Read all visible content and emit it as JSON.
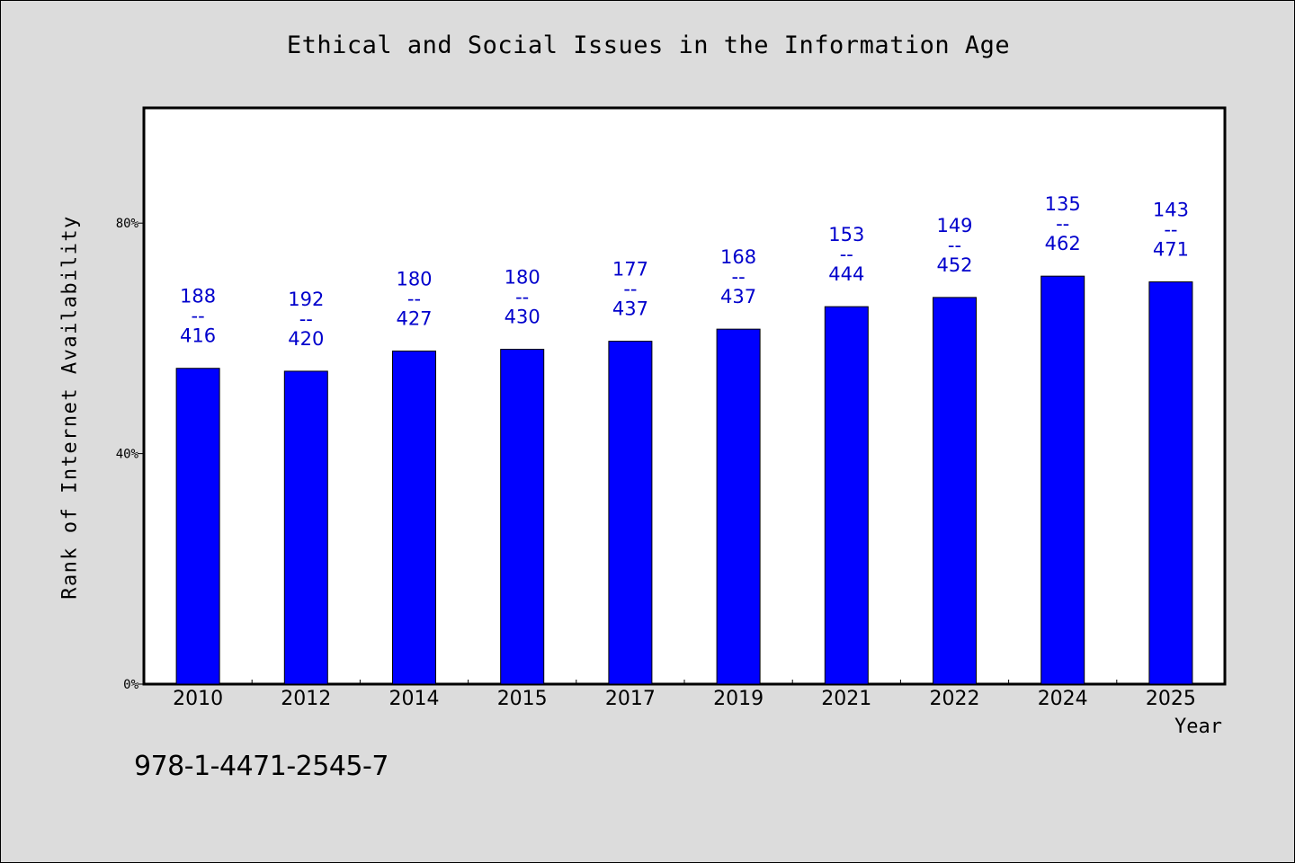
{
  "chart_data": {
    "type": "bar",
    "title": "Ethical and Social Issues in the Information Age",
    "xlabel": "Year",
    "ylabel": "Rank of Internet Availability",
    "categories": [
      "2010",
      "2012",
      "2014",
      "2015",
      "2017",
      "2019",
      "2021",
      "2022",
      "2024",
      "2025"
    ],
    "values": [
      54.8,
      54.3,
      57.8,
      58.1,
      59.5,
      61.6,
      65.5,
      67.1,
      70.8,
      69.8
    ],
    "data_labels": [
      {
        "top": "188",
        "sep": "--",
        "bottom": "416"
      },
      {
        "top": "192",
        "sep": "--",
        "bottom": "420"
      },
      {
        "top": "180",
        "sep": "--",
        "bottom": "427"
      },
      {
        "top": "180",
        "sep": "--",
        "bottom": "430"
      },
      {
        "top": "177",
        "sep": "--",
        "bottom": "437"
      },
      {
        "top": "168",
        "sep": "--",
        "bottom": "437"
      },
      {
        "top": "153",
        "sep": "--",
        "bottom": "444"
      },
      {
        "top": "149",
        "sep": "--",
        "bottom": "452"
      },
      {
        "top": "135",
        "sep": "--",
        "bottom": "462"
      },
      {
        "top": "143",
        "sep": "--",
        "bottom": "471"
      }
    ],
    "yticks": [
      0,
      40,
      80
    ],
    "ytick_labels": [
      "0%",
      "40%",
      "80%"
    ],
    "ylim": [
      0,
      100
    ],
    "grid": false,
    "bar_color": "#0000ff",
    "label_color": "#0000cc"
  },
  "footer": {
    "isbn": "978-1-4471-2545-7"
  },
  "colors": {
    "background": "#dcdcdc",
    "plot_background": "#ffffff"
  }
}
